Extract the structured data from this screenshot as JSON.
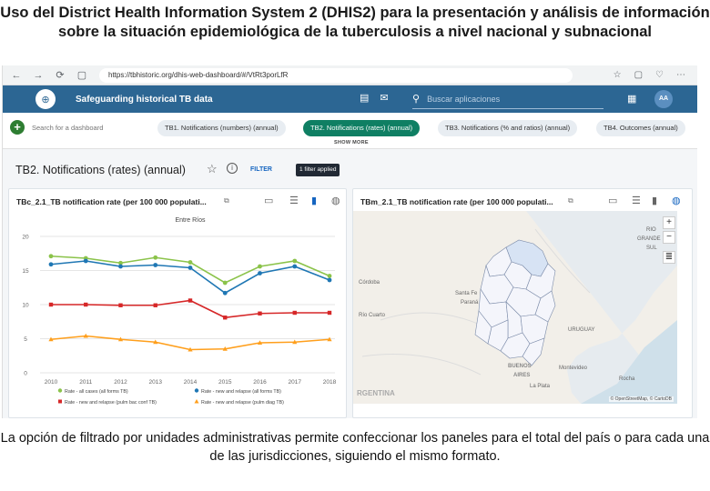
{
  "slide": {
    "title": "Uso del District Health Information System 2 (DHIS2) para la presentación y análisis de información sobre la situación epidemiológica de la tuberculosis a nivel nacional y subnacional",
    "caption": "La opción de filtrado por unidades administrativas permite confeccionar los paneles para el total del país o para cada una de las jurisdicciones, siguiendo el mismo formato."
  },
  "browser": {
    "url": "https://tbhistoric.org/dhis-web-dashboard/#/VtRt3porLfR",
    "nav_back": "←",
    "nav_forward": "→",
    "reload": "⟳",
    "site_info": "▢",
    "star": "☆",
    "ext1": "▢",
    "ext2": "♡",
    "ext3": "⋯"
  },
  "header": {
    "logo": "⊕",
    "app_title": "Safeguarding historical TB data",
    "interpretations_icon": "▤",
    "messages_icon": "✉",
    "search_icon": "⚲",
    "search_placeholder": "Buscar aplicaciones",
    "apps_icon": "▦",
    "user_initials": "AA"
  },
  "dashboard_bar": {
    "add_label": "+",
    "search_placeholder": "Search for a dashboard",
    "chips": [
      {
        "label": "TB1. Notifications (numbers) (annual)",
        "active": false
      },
      {
        "label": "TB2. Notifications (rates) (annual)",
        "active": true
      },
      {
        "label": "TB3. Notifications (% and ratios) (annual)",
        "active": false
      },
      {
        "label": "TB4. Outcomes (annual)",
        "active": false
      }
    ],
    "show_more": "SHOW MORE"
  },
  "dashboard": {
    "title": "TB2. Notifications (rates) (annual)",
    "star_icon": "☆",
    "info_icon": "i",
    "filter_label": "FILTER",
    "filter_badge": "1 filter applied"
  },
  "panels": {
    "chart_panel": {
      "title": "TBc_2.1_TB notification rate (per 100 000 populati...",
      "ext_icon": "⧉",
      "tool_interp": "▭",
      "tool_table": "☰",
      "tool_chart": "▮",
      "tool_map": "◍"
    },
    "map_panel": {
      "title": "TBm_2.1_TB notification rate (per 100 000 populati...",
      "ext_icon": "⧉",
      "tool_interp": "▭",
      "tool_table": "☰",
      "tool_chart": "▮",
      "tool_map": "◍",
      "zoom_in": "+",
      "zoom_out": "−",
      "legend_icon": "≣",
      "labels": [
        "RIO",
        "GRANDE",
        "SUL",
        "Córdoba",
        "Santa Fe",
        "Paraná",
        "URUGUAY",
        "Río Cuarto",
        "Montevideo",
        "BUENOS",
        "AIRES",
        "La Plata",
        "Rocha",
        "RGENTINA"
      ],
      "attribution": "© OpenStreetMap, © CartoDB"
    }
  },
  "chart_data": {
    "type": "line",
    "title": "Entre Ríos",
    "categories": [
      "2010",
      "2011",
      "2012",
      "2013",
      "2014",
      "2015",
      "2016",
      "2017",
      "2018"
    ],
    "ylim": [
      0,
      20
    ],
    "y_ticks": [
      "0",
      "5",
      "10",
      "15",
      "20"
    ],
    "series": [
      {
        "name": "Rate - all cases (all forms TB)",
        "color": "#8bc34a",
        "marker": "circle",
        "values": [
          17.1,
          16.8,
          16.1,
          16.9,
          16.2,
          13.2,
          15.6,
          16.4,
          14.2
        ]
      },
      {
        "name": "Rate - new and relapse (all forms TB)",
        "color": "#1f77b4",
        "marker": "circle",
        "values": [
          15.9,
          16.4,
          15.6,
          15.8,
          15.4,
          11.7,
          14.6,
          15.6,
          13.6
        ]
      },
      {
        "name": "Rate - new and relapse (pulm bac conf TB)",
        "color": "#d62728",
        "marker": "square",
        "values": [
          10.0,
          10.0,
          9.9,
          9.9,
          10.6,
          8.1,
          8.7,
          8.8,
          8.8
        ]
      },
      {
        "name": "Rate - new and relapse (pulm diag TB)",
        "color": "#ff9f1c",
        "marker": "triangle",
        "values": [
          4.9,
          5.4,
          4.9,
          4.5,
          3.4,
          3.5,
          4.4,
          4.5,
          4.9
        ]
      }
    ]
  }
}
